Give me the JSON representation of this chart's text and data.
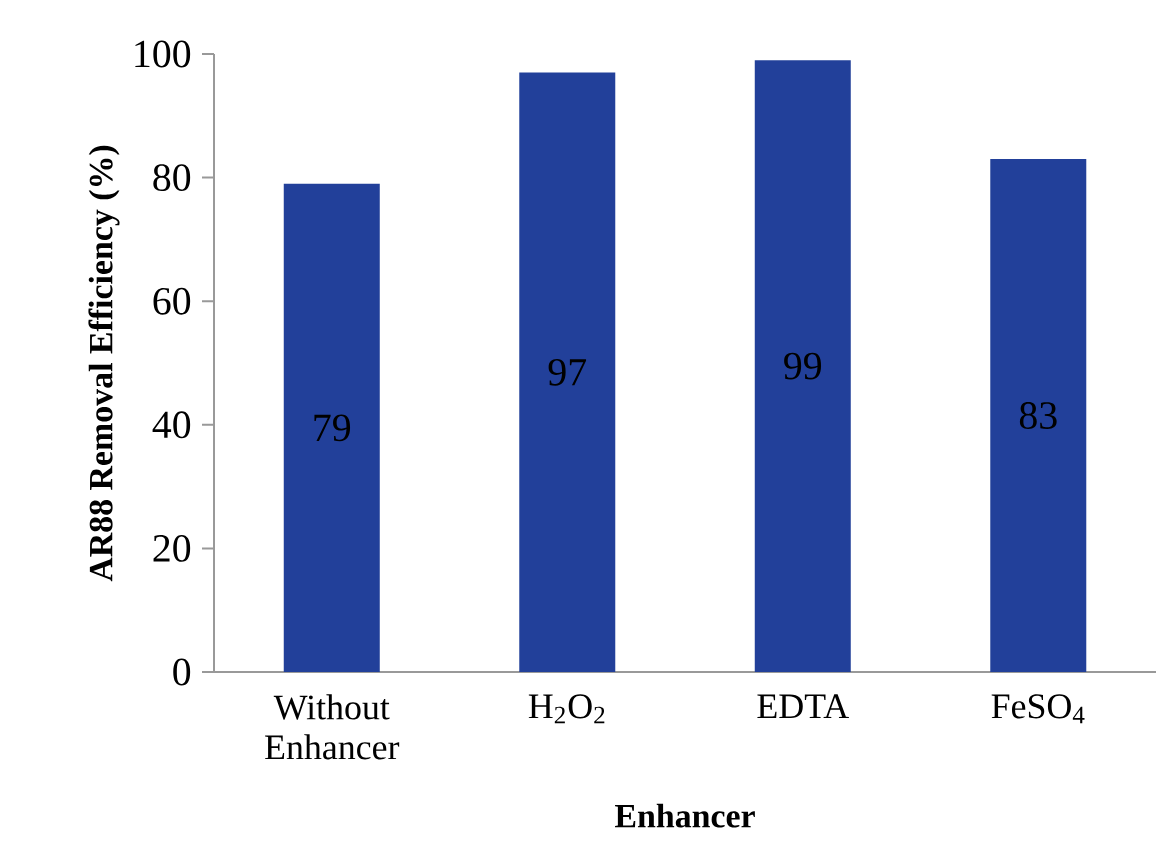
{
  "chart_data": {
    "type": "bar",
    "xlabel": "Enhancer",
    "ylabel": "AR88 Removal Efficiency (%)",
    "categories": [
      "Without Enhancer",
      "H$_{2}$O$_{2}$",
      "EDTA",
      "FeSO$_{4}$"
    ],
    "values": [
      79,
      97,
      99,
      83
    ],
    "color": "#22409a",
    "ylim": [
      0,
      100
    ],
    "yticks": [
      0,
      20,
      40,
      60,
      80,
      100
    ],
    "data_labels": true,
    "grid": false
  }
}
